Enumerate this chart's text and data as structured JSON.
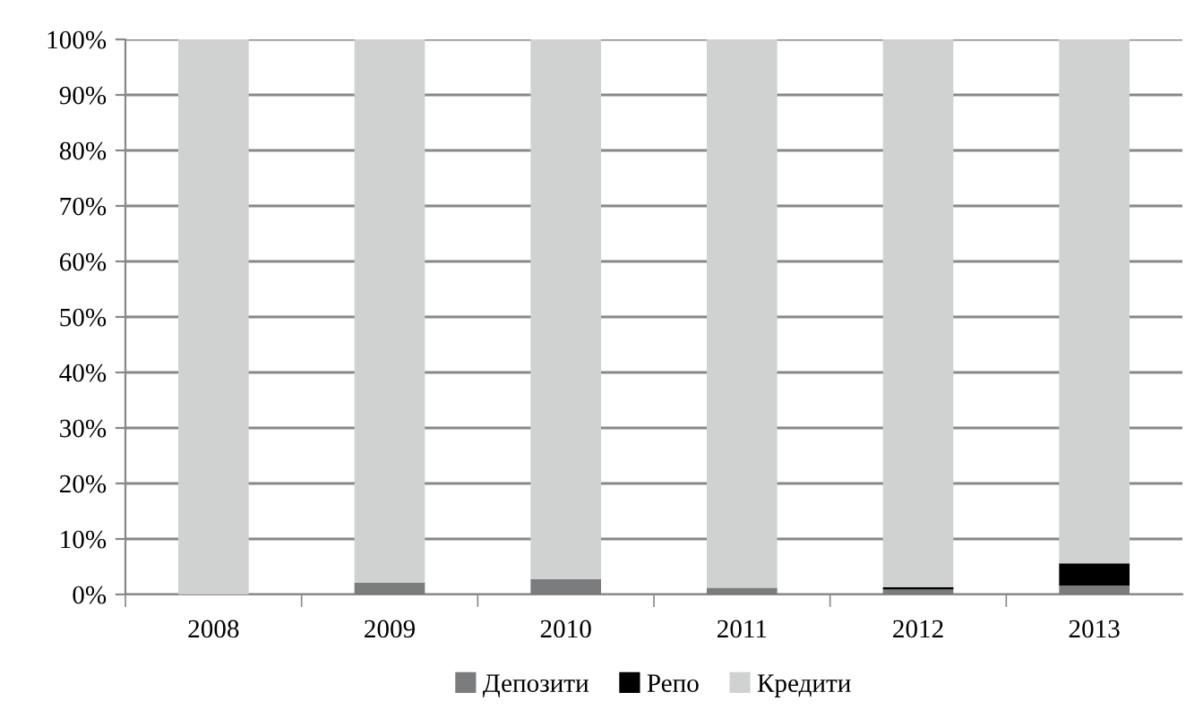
{
  "chart_data": {
    "type": "bar",
    "stacked": true,
    "categories": [
      "2008",
      "2009",
      "2010",
      "2011",
      "2012",
      "2013"
    ],
    "series": [
      {
        "name": "Депозити",
        "color": "#7a7c7d",
        "values": [
          0,
          2.1,
          2.8,
          1.2,
          0.9,
          1.6
        ]
      },
      {
        "name": "Репо",
        "color": "#000000",
        "values": [
          0,
          0,
          0,
          0,
          0.4,
          4.0
        ]
      },
      {
        "name": "Кредити",
        "color": "#d0d1d1",
        "values": [
          100,
          97.9,
          97.2,
          98.8,
          98.7,
          94.4
        ]
      }
    ],
    "ylim": [
      0,
      100
    ],
    "yticks": [
      {
        "value": 0,
        "label": "0%"
      },
      {
        "value": 10,
        "label": "10%"
      },
      {
        "value": 20,
        "label": "20%"
      },
      {
        "value": 30,
        "label": "30%"
      },
      {
        "value": 40,
        "label": "40%"
      },
      {
        "value": 50,
        "label": "50%"
      },
      {
        "value": 60,
        "label": "60%"
      },
      {
        "value": 70,
        "label": "70%"
      },
      {
        "value": 80,
        "label": "80%"
      },
      {
        "value": 90,
        "label": "90%"
      },
      {
        "value": 100,
        "label": "100%"
      }
    ],
    "grid": "y",
    "legend": "bottom"
  }
}
